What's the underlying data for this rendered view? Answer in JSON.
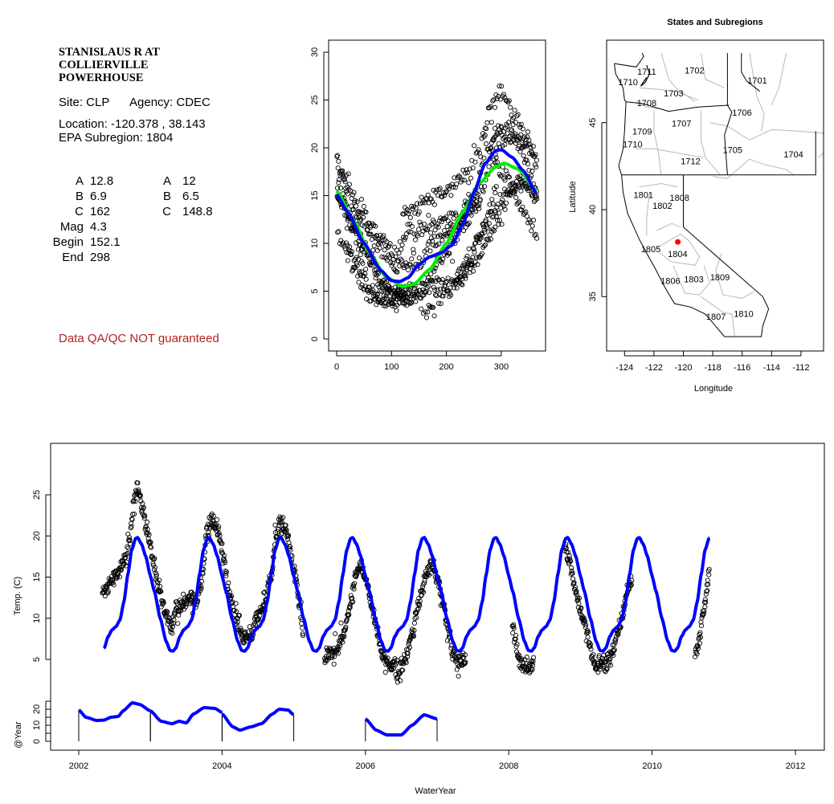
{
  "site_info": {
    "title_lines": [
      "STANISLAUS R AT",
      "COLLIERVILLE",
      "POWERHOUSE"
    ],
    "site": "Site: CLP",
    "agency": "Agency: CDEC",
    "location": "Location: -120.378 , 38.143",
    "subregion": "EPA Subregion: 1804",
    "fit1": [
      {
        "label": "A",
        "value": "12.8"
      },
      {
        "label": "B",
        "value": "6.9"
      },
      {
        "label": "C",
        "value": "162"
      },
      {
        "label": "Mag",
        "value": "4.3"
      },
      {
        "label": "Begin",
        "value": "152.1"
      },
      {
        "label": "End",
        "value": "298"
      }
    ],
    "fit2": [
      {
        "label": "A",
        "value": "12"
      },
      {
        "label": "B",
        "value": "6.5"
      },
      {
        "label": "C",
        "value": "148.8"
      }
    ],
    "disclaimer": "Data QA/QC NOT guaranteed",
    "disclaimer_color": "#b22222"
  },
  "chart_data": [
    {
      "id": "seasonal",
      "type": "scatter",
      "title": "",
      "xlabel": "",
      "ylabel": "",
      "xlim": [
        0,
        365
      ],
      "ylim": [
        0,
        30
      ],
      "xticks": [
        0,
        100,
        200,
        300
      ],
      "yticks": [
        0,
        5,
        10,
        15,
        20,
        25,
        30
      ],
      "series": [
        {
          "name": "model-blue",
          "type": "line",
          "color": "#0000ff",
          "points": [
            [
              0,
              15.1
            ],
            [
              20,
              13.3
            ],
            [
              50,
              10
            ],
            [
              80,
              7.2
            ],
            [
              100,
              6.1
            ],
            [
              115,
              6.0
            ],
            [
              130,
              6.4
            ],
            [
              150,
              7.8
            ],
            [
              170,
              8.6
            ],
            [
              190,
              9.0
            ],
            [
              210,
              9.8
            ],
            [
              230,
              12
            ],
            [
              250,
              15.3
            ],
            [
              270,
              18.3
            ],
            [
              290,
              19.7
            ],
            [
              300,
              19.8
            ],
            [
              320,
              19.0
            ],
            [
              340,
              17.6
            ],
            [
              365,
              15.2
            ]
          ]
        },
        {
          "name": "model-green",
          "type": "line",
          "color": "#00ee00",
          "points": [
            [
              0,
              15.5
            ],
            [
              30,
              12.5
            ],
            [
              60,
              9
            ],
            [
              90,
              6.5
            ],
            [
              120,
              5.5
            ],
            [
              140,
              5.7
            ],
            [
              170,
              7.3
            ],
            [
              200,
              10
            ],
            [
              230,
              13.3
            ],
            [
              260,
              16.3
            ],
            [
              290,
              18.0
            ],
            [
              305,
              18.4
            ],
            [
              330,
              17.8
            ],
            [
              365,
              15.5
            ]
          ]
        }
      ]
    },
    {
      "id": "map",
      "type": "scatter",
      "title": "States and Subregions",
      "xlabel": "Longitude",
      "ylabel": "Latitude",
      "xticks": [
        -124,
        -122,
        -120,
        -118,
        -116,
        -114,
        -112
      ],
      "yticks": [
        35,
        40,
        45
      ],
      "site": {
        "lon": -120.378,
        "lat": 38.143,
        "color": "#ff0000"
      },
      "regions": [
        {
          "name": "1702",
          "lon": -119.24,
          "lat": 48.02
        },
        {
          "name": "1701",
          "lon": -114.97,
          "lat": 47.43
        },
        {
          "name": "1711",
          "lon": -122.49,
          "lat": 47.95
        },
        {
          "name": "1710",
          "lon": -123.76,
          "lat": 47.34
        },
        {
          "name": "1703",
          "lon": -120.66,
          "lat": 46.69
        },
        {
          "name": "1708",
          "lon": -122.49,
          "lat": 46.15
        },
        {
          "name": "1706",
          "lon": -116.01,
          "lat": 45.58
        },
        {
          "name": "1707",
          "lon": -120.12,
          "lat": 44.97
        },
        {
          "name": "1709",
          "lon": -122.8,
          "lat": 44.51
        },
        {
          "name": "1710",
          "lon": -123.45,
          "lat": 43.77
        },
        {
          "name": "1705",
          "lon": -116.65,
          "lat": 43.43
        },
        {
          "name": "1704",
          "lon": -112.51,
          "lat": 43.18
        },
        {
          "name": "1712",
          "lon": -119.51,
          "lat": 42.8
        },
        {
          "name": "1801",
          "lon": -122.72,
          "lat": 40.86
        },
        {
          "name": "1808",
          "lon": -120.26,
          "lat": 40.69
        },
        {
          "name": "1802",
          "lon": -121.43,
          "lat": 40.23
        },
        {
          "name": "1805",
          "lon": -122.21,
          "lat": 37.74
        },
        {
          "name": "1804",
          "lon": -120.39,
          "lat": 37.46
        },
        {
          "name": "1806",
          "lon": -120.88,
          "lat": 35.92
        },
        {
          "name": "1803",
          "lon": -119.29,
          "lat": 36.01
        },
        {
          "name": "1809",
          "lon": -117.51,
          "lat": 36.12
        },
        {
          "name": "1807",
          "lon": -117.78,
          "lat": 33.86
        },
        {
          "name": "1810",
          "lon": -115.9,
          "lat": 34.01
        }
      ]
    },
    {
      "id": "timeseries",
      "type": "scatter",
      "xlabel": "WaterYear",
      "ylabel": "Temp. (C)",
      "ylabel2": "@Year",
      "xlim": [
        2001.6,
        2012.4
      ],
      "xticks": [
        2002,
        2004,
        2006,
        2008,
        2010,
        2012
      ],
      "yticks": [
        5,
        10,
        15,
        20,
        25
      ],
      "yticks2_labels": [
        0,
        10,
        20
      ],
      "yticks2": [
        0,
        5,
        10,
        15,
        20,
        25
      ],
      "model_range": [
        2002.35,
        2010.81
      ],
      "observed_segments": [
        [
          [
            2002.33,
            13
          ],
          [
            2002.45,
            14.5
          ],
          [
            2002.55,
            15.5
          ],
          [
            2002.65,
            17
          ],
          [
            2002.72,
            20
          ],
          [
            2002.78,
            25
          ],
          [
            2002.82,
            26
          ],
          [
            2002.87,
            24
          ],
          [
            2002.95,
            21
          ],
          [
            2003.0,
            18.5
          ],
          [
            2003.1,
            14
          ],
          [
            2003.2,
            11
          ],
          [
            2003.3,
            9
          ],
          [
            2003.35,
            11
          ],
          [
            2003.45,
            11.5
          ],
          [
            2003.55,
            12.5
          ],
          [
            2003.65,
            12
          ],
          [
            2003.72,
            15
          ],
          [
            2003.8,
            21
          ],
          [
            2003.85,
            22
          ],
          [
            2003.95,
            20.5
          ],
          [
            2004.0,
            18
          ],
          [
            2004.1,
            13
          ],
          [
            2004.2,
            10
          ],
          [
            2004.3,
            7.5
          ],
          [
            2004.4,
            8
          ],
          [
            2004.5,
            10
          ],
          [
            2004.6,
            12
          ],
          [
            2004.7,
            16
          ],
          [
            2004.75,
            20
          ],
          [
            2004.8,
            21.5
          ],
          [
            2004.9,
            20.5
          ],
          [
            2005.0,
            16
          ],
          [
            2005.08,
            12
          ],
          [
            2005.13,
            8
          ]
        ],
        [
          [
            2005.43,
            5
          ],
          [
            2005.5,
            5.5
          ],
          [
            2005.6,
            6
          ],
          [
            2005.7,
            8
          ],
          [
            2005.8,
            12
          ],
          [
            2005.88,
            15.5
          ],
          [
            2005.95,
            16.5
          ],
          [
            2006.0,
            15
          ],
          [
            2006.08,
            12
          ],
          [
            2006.15,
            9
          ],
          [
            2006.22,
            6
          ],
          [
            2006.3,
            4.5
          ],
          [
            2006.4,
            4.5
          ],
          [
            2006.45,
            3
          ],
          [
            2006.55,
            5
          ],
          [
            2006.65,
            8
          ],
          [
            2006.75,
            12
          ],
          [
            2006.85,
            15.5
          ],
          [
            2006.92,
            16.5
          ],
          [
            2007.0,
            15
          ],
          [
            2007.08,
            12
          ],
          [
            2007.15,
            9
          ],
          [
            2007.22,
            6
          ],
          [
            2007.3,
            4.5
          ],
          [
            2007.38,
            5
          ],
          [
            2007.4,
            5.5
          ]
        ],
        [
          [
            2008.05,
            9
          ],
          [
            2008.1,
            7
          ],
          [
            2008.15,
            5
          ],
          [
            2008.2,
            4
          ],
          [
            2008.3,
            4.2
          ],
          [
            2008.35,
            5
          ]
        ],
        [
          [
            2008.78,
            19
          ],
          [
            2008.85,
            17
          ],
          [
            2008.92,
            14
          ],
          [
            2009.0,
            11
          ],
          [
            2009.1,
            8
          ],
          [
            2009.18,
            4.5
          ],
          [
            2009.25,
            4.3
          ],
          [
            2009.35,
            4.5
          ],
          [
            2009.45,
            6
          ],
          [
            2009.55,
            9
          ],
          [
            2009.65,
            13
          ],
          [
            2009.72,
            15
          ]
        ],
        [
          [
            2010.6,
            5.5
          ],
          [
            2010.65,
            7
          ],
          [
            2010.7,
            10
          ],
          [
            2010.75,
            12.5
          ],
          [
            2010.8,
            16
          ]
        ]
      ],
      "annual_segments": [
        {
          "start": 2002,
          "end": 2003,
          "points": [
            [
              2002,
              19.5
            ],
            [
              2002.1,
              15
            ],
            [
              2002.25,
              13
            ],
            [
              2002.35,
              13.2
            ],
            [
              2002.45,
              15
            ],
            [
              2002.55,
              15.5
            ],
            [
              2002.62,
              19
            ],
            [
              2002.75,
              24
            ],
            [
              2002.85,
              23
            ],
            [
              2003.0,
              19
            ]
          ]
        },
        {
          "start": 2003,
          "end": 2004,
          "points": [
            [
              2003.0,
              19
            ],
            [
              2003.15,
              12.5
            ],
            [
              2003.3,
              11
            ],
            [
              2003.4,
              12.5
            ],
            [
              2003.5,
              11.5
            ],
            [
              2003.6,
              17
            ],
            [
              2003.75,
              21
            ],
            [
              2003.9,
              20.5
            ],
            [
              2004.0,
              18
            ]
          ]
        },
        {
          "start": 2004,
          "end": 2005,
          "points": [
            [
              2004.0,
              17
            ],
            [
              2004.15,
              9
            ],
            [
              2004.25,
              7
            ],
            [
              2004.4,
              9
            ],
            [
              2004.55,
              11
            ],
            [
              2004.7,
              17
            ],
            [
              2004.8,
              20
            ],
            [
              2004.92,
              19.5
            ],
            [
              2005.0,
              16.5
            ]
          ]
        },
        {
          "start": 2006,
          "end": 2007,
          "points": [
            [
              2006.0,
              14
            ],
            [
              2006.15,
              7
            ],
            [
              2006.3,
              4
            ],
            [
              2006.5,
              4
            ],
            [
              2006.65,
              10
            ],
            [
              2006.82,
              16.5
            ],
            [
              2007.0,
              14
            ]
          ]
        }
      ]
    }
  ]
}
